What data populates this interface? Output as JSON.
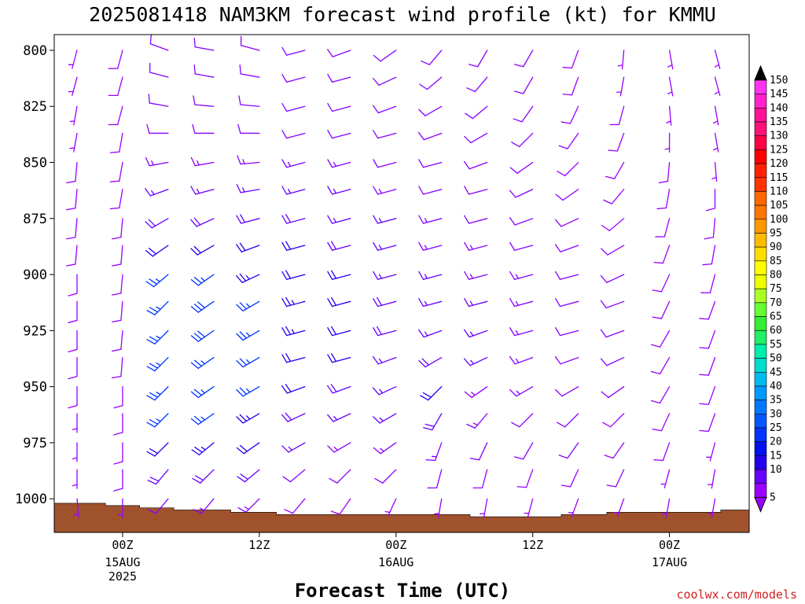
{
  "chart_data": {
    "type": "wind-barb-profile",
    "title": "2025081418 NAM3KM forecast wind profile (kt) for KMMU",
    "xlabel": "Forecast Time (UTC)",
    "ylabel": "",
    "credit": "coolwx.com/models",
    "y_axis": {
      "ticks": [
        "800",
        "825",
        "850",
        "875",
        "900",
        "925",
        "950",
        "975",
        "1000"
      ],
      "range_hpa": [
        793,
        1015
      ],
      "inverted": true
    },
    "x_axis": {
      "range_hours_from_start": [
        0,
        61
      ],
      "ticks": [
        {
          "hour": 6,
          "label": "00Z",
          "date": "15AUG",
          "year": "2025"
        },
        {
          "hour": 18,
          "label": "12Z",
          "date": "",
          "year": ""
        },
        {
          "hour": 30,
          "label": "00Z",
          "date": "16AUG",
          "year": ""
        },
        {
          "hour": 42,
          "label": "12Z",
          "date": "",
          "year": ""
        },
        {
          "hour": 54,
          "label": "00Z",
          "date": "17AUG",
          "year": ""
        }
      ]
    },
    "levels_hpa": [
      800,
      812,
      825,
      837,
      850,
      862,
      875,
      887,
      900,
      912,
      925,
      937,
      950,
      962,
      975,
      987,
      1000
    ],
    "colorbar": {
      "labels": [
        "150",
        "145",
        "140",
        "135",
        "130",
        "125",
        "120",
        "115",
        "110",
        "105",
        "100",
        "95",
        "90",
        "85",
        "80",
        "75",
        "70",
        "65",
        "60",
        "55",
        "50",
        "45",
        "40",
        "35",
        "30",
        "25",
        "20",
        "15",
        "10",
        "5"
      ],
      "colors": [
        "#ff33ee",
        "#ff22cc",
        "#ff1199",
        "#ff1177",
        "#ff0044",
        "#ff0000",
        "#ff2200",
        "#ff3300",
        "#ff6600",
        "#ff7700",
        "#ff9900",
        "#ffbb00",
        "#ffdd00",
        "#ffff00",
        "#eeff00",
        "#aaff22",
        "#66ff33",
        "#33ee33",
        "#22ee66",
        "#00eeaa",
        "#00ddcc",
        "#00bbee",
        "#0099ff",
        "#0077ff",
        "#0055ff",
        "#0033ff",
        "#0011ee",
        "#2200ee",
        "#6600ff",
        "#9900ff"
      ]
    },
    "terrain": {
      "color": "#a0522d",
      "surface_hpa": [
        {
          "hour": 0,
          "p": 1002
        },
        {
          "hour": 2.5,
          "p": 1002
        },
        {
          "hour": 4.5,
          "p": 1003
        },
        {
          "hour": 7.5,
          "p": 1004
        },
        {
          "hour": 10.5,
          "p": 1005
        },
        {
          "hour": 15.5,
          "p": 1006
        },
        {
          "hour": 19.5,
          "p": 1007
        },
        {
          "hour": 28.5,
          "p": 1007
        },
        {
          "hour": 36.5,
          "p": 1008
        },
        {
          "hour": 40.5,
          "p": 1008
        },
        {
          "hour": 44.5,
          "p": 1007
        },
        {
          "hour": 48.5,
          "p": 1006
        },
        {
          "hour": 58.5,
          "p": 1005
        },
        {
          "hour": 61,
          "p": 1005
        }
      ]
    },
    "barb_color_map": {
      "5": "#9900ff",
      "10": "#8800ff",
      "15": "#6600ff",
      "20": "#2200ee",
      "25": "#0033ff",
      "30": "#0055ff",
      "35": "#0077ff"
    },
    "wind_columns": [
      {
        "hour": 2,
        "dir": [
          195,
          195,
          190,
          190,
          185,
          185,
          185,
          185,
          180,
          180,
          180,
          180,
          180,
          180,
          180,
          180,
          175
        ],
        "spd": [
          7,
          7,
          7,
          7,
          8,
          8,
          8,
          8,
          8,
          8,
          8,
          8,
          8,
          7,
          7,
          7,
          6
        ]
      },
      {
        "hour": 6,
        "dir": [
          195,
          195,
          195,
          190,
          190,
          190,
          185,
          185,
          185,
          185,
          185,
          185,
          180,
          180,
          180,
          180,
          180
        ],
        "spd": [
          8,
          8,
          8,
          8,
          8,
          8,
          8,
          8,
          8,
          8,
          8,
          8,
          8,
          8,
          8,
          8,
          6
        ]
      },
      {
        "hour": 10,
        "dir": [
          290,
          285,
          280,
          270,
          260,
          250,
          240,
          235,
          230,
          225,
          225,
          225,
          225,
          225,
          225,
          220,
          220
        ],
        "spd": [
          10,
          10,
          10,
          12,
          13,
          15,
          18,
          22,
          25,
          27,
          27,
          27,
          26,
          25,
          22,
          18,
          12
        ]
      },
      {
        "hour": 14,
        "dir": [
          280,
          280,
          275,
          270,
          260,
          255,
          245,
          240,
          235,
          235,
          235,
          235,
          235,
          235,
          230,
          225,
          220
        ],
        "spd": [
          10,
          10,
          11,
          12,
          13,
          15,
          18,
          22,
          26,
          28,
          28,
          27,
          27,
          26,
          23,
          18,
          13
        ]
      },
      {
        "hour": 18,
        "dir": [
          285,
          280,
          275,
          270,
          265,
          260,
          255,
          250,
          245,
          240,
          240,
          240,
          240,
          240,
          235,
          230,
          225
        ],
        "spd": [
          10,
          10,
          11,
          12,
          13,
          15,
          18,
          20,
          23,
          25,
          26,
          26,
          25,
          24,
          22,
          18,
          13
        ]
      },
      {
        "hour": 22,
        "dir": [
          255,
          255,
          255,
          255,
          255,
          255,
          255,
          255,
          255,
          255,
          255,
          255,
          250,
          245,
          240,
          230,
          220
        ],
        "spd": [
          10,
          10,
          11,
          12,
          14,
          16,
          18,
          20,
          22,
          23,
          23,
          22,
          20,
          18,
          15,
          12,
          8
        ]
      },
      {
        "hour": 26,
        "dir": [
          250,
          255,
          255,
          255,
          255,
          255,
          255,
          255,
          255,
          255,
          255,
          255,
          250,
          245,
          240,
          225,
          215
        ],
        "spd": [
          10,
          10,
          11,
          12,
          13,
          15,
          17,
          18,
          20,
          21,
          21,
          20,
          18,
          16,
          14,
          11,
          8
        ]
      },
      {
        "hour": 30,
        "dir": [
          235,
          245,
          250,
          255,
          255,
          255,
          255,
          255,
          255,
          255,
          255,
          250,
          245,
          240,
          235,
          225,
          205
        ],
        "spd": [
          10,
          10,
          10,
          11,
          12,
          14,
          15,
          16,
          17,
          18,
          18,
          17,
          16,
          15,
          13,
          10,
          7
        ]
      },
      {
        "hour": 34,
        "dir": [
          220,
          230,
          240,
          250,
          255,
          255,
          255,
          255,
          255,
          255,
          250,
          240,
          225,
          210,
          200,
          195,
          190
        ],
        "spd": [
          10,
          10,
          10,
          10,
          11,
          12,
          13,
          14,
          15,
          16,
          17,
          19,
          22,
          18,
          13,
          10,
          7
        ]
      },
      {
        "hour": 38,
        "dir": [
          210,
          220,
          230,
          240,
          250,
          255,
          255,
          255,
          255,
          255,
          250,
          245,
          235,
          220,
          205,
          195,
          190
        ],
        "spd": [
          10,
          10,
          10,
          10,
          10,
          11,
          12,
          13,
          14,
          15,
          15,
          15,
          14,
          13,
          11,
          9,
          7
        ]
      },
      {
        "hour": 42,
        "dir": [
          210,
          210,
          215,
          225,
          235,
          245,
          250,
          255,
          255,
          255,
          255,
          250,
          240,
          225,
          210,
          200,
          195
        ],
        "spd": [
          10,
          10,
          10,
          10,
          10,
          10,
          11,
          12,
          13,
          14,
          14,
          14,
          13,
          12,
          11,
          9,
          7
        ]
      },
      {
        "hour": 46,
        "dir": [
          200,
          200,
          205,
          215,
          225,
          235,
          245,
          250,
          255,
          255,
          255,
          250,
          240,
          225,
          215,
          205,
          200
        ],
        "spd": [
          8,
          8,
          9,
          9,
          9,
          10,
          10,
          11,
          12,
          12,
          12,
          12,
          11,
          11,
          10,
          9,
          7
        ]
      },
      {
        "hour": 50,
        "dir": [
          185,
          190,
          195,
          200,
          210,
          220,
          230,
          240,
          245,
          250,
          250,
          245,
          235,
          225,
          215,
          205,
          200
        ],
        "spd": [
          7,
          7,
          8,
          8,
          8,
          8,
          9,
          9,
          10,
          10,
          10,
          10,
          10,
          9,
          9,
          8,
          7
        ]
      },
      {
        "hour": 54,
        "dir": [
          170,
          170,
          175,
          180,
          185,
          190,
          195,
          200,
          205,
          205,
          210,
          210,
          210,
          205,
          200,
          195,
          190
        ],
        "spd": [
          7,
          7,
          7,
          7,
          8,
          8,
          8,
          8,
          8,
          8,
          8,
          8,
          8,
          8,
          8,
          7,
          6
        ]
      },
      {
        "hour": 58,
        "dir": [
          165,
          165,
          170,
          170,
          175,
          180,
          185,
          190,
          195,
          200,
          200,
          200,
          200,
          200,
          195,
          190,
          190
        ],
        "spd": [
          7,
          7,
          7,
          7,
          7,
          8,
          8,
          8,
          8,
          8,
          8,
          8,
          8,
          8,
          7,
          7,
          6
        ]
      }
    ]
  }
}
